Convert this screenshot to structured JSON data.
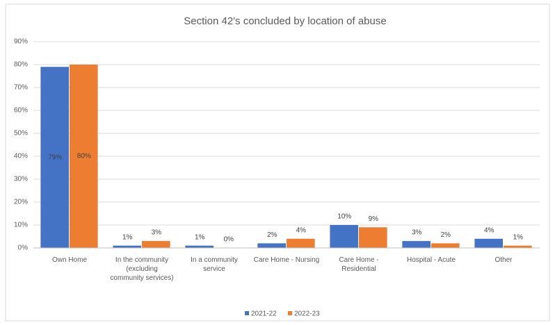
{
  "chart_data": {
    "type": "bar",
    "title": "Section 42's concluded by location of abuse",
    "categories": [
      "Own Home",
      "In the community (excluding community services)",
      "In a community service",
      "Care Home - Nursing",
      "Care Home - Residential",
      "Hospital - Acute",
      "Other"
    ],
    "series": [
      {
        "name": "2021-22",
        "color": "#4472c4",
        "values": [
          79,
          1,
          1,
          2,
          10,
          3,
          4
        ],
        "value_labels": [
          "79%",
          "1%",
          "1%",
          "2%",
          "10%",
          "3%",
          "4%"
        ]
      },
      {
        "name": "2022-23",
        "color": "#ed7d31",
        "values": [
          80,
          3,
          0,
          4,
          9,
          2,
          1
        ],
        "value_labels": [
          "80%",
          "3%",
          "0%",
          "4%",
          "9%",
          "2%",
          "1%"
        ]
      }
    ],
    "ylim": [
      0,
      90
    ],
    "yticks": [
      {
        "value": 0,
        "label": "0%"
      },
      {
        "value": 10,
        "label": "10%"
      },
      {
        "value": 20,
        "label": "20%"
      },
      {
        "value": 30,
        "label": "30%"
      },
      {
        "value": 40,
        "label": "40%"
      },
      {
        "value": 50,
        "label": "50%"
      },
      {
        "value": 60,
        "label": "60%"
      },
      {
        "value": 70,
        "label": "70%"
      },
      {
        "value": 80,
        "label": "80%"
      },
      {
        "value": 90,
        "label": "90%"
      }
    ],
    "grid": true,
    "legend": "bottom"
  }
}
